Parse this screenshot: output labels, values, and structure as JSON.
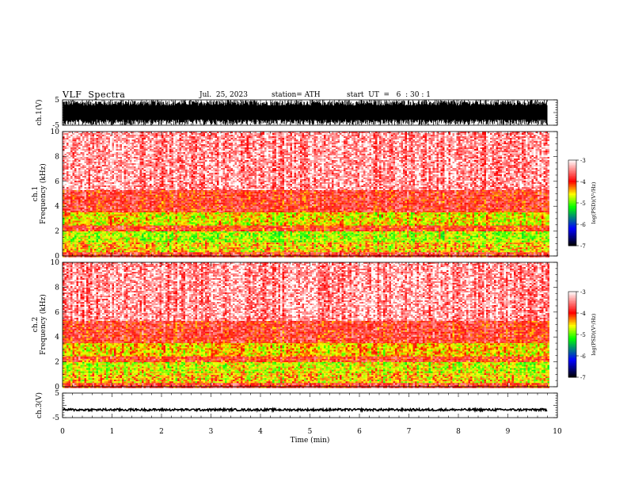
{
  "header": {
    "title": "VLF  Spectra",
    "date": "Jul.  25, 2023",
    "station": "station= ATH",
    "start": "start  UT  =   6  : 30 : 1"
  },
  "chart_data": [
    {
      "type": "line",
      "panel": "waveform-ch1",
      "ylabel": "ch.1(V)",
      "ylim": [
        -5,
        5
      ],
      "yticks": [
        "5",
        "-5"
      ],
      "xlim": [
        0,
        10
      ],
      "x_data_end": 9.8,
      "description_values": {
        "min": -5,
        "max": 5
      }
    },
    {
      "type": "heatmap",
      "panel": "spectrogram-ch1",
      "ylabel": "ch.1",
      "ylabel2": "Frequency  (kHz)",
      "ylim": [
        0,
        10
      ],
      "yticks": [
        "0",
        "2",
        "4",
        "6",
        "8",
        "10"
      ],
      "xlim": [
        0,
        10
      ],
      "x_data_end": 9.8,
      "band_levels": [
        {
          "from": 0,
          "to": 0.4,
          "level": -3.9
        },
        {
          "from": 0.4,
          "to": 1.2,
          "level": -4.5
        },
        {
          "from": 1.2,
          "to": 2.0,
          "level": -4.8
        },
        {
          "from": 2.0,
          "to": 2.5,
          "level": -4.0
        },
        {
          "from": 2.5,
          "to": 3.6,
          "level": -4.6
        },
        {
          "from": 3.6,
          "to": 5.3,
          "level": -3.9
        },
        {
          "from": 5.3,
          "to": 10,
          "level": -3.4
        }
      ],
      "colorbar": {
        "label": "log(PSD)(V²/Hz)",
        "range": [
          -7,
          -3
        ],
        "ticks": [
          "-3",
          "-4",
          "-5",
          "-6",
          "-7"
        ]
      }
    },
    {
      "type": "heatmap",
      "panel": "spectrogram-ch2",
      "ylabel": "ch.2",
      "ylabel2": "Frequency  (kHz)",
      "ylim": [
        0,
        10
      ],
      "yticks": [
        "0",
        "2",
        "4",
        "6",
        "8",
        "10"
      ],
      "xlim": [
        0,
        10
      ],
      "x_data_end": 9.8,
      "band_levels": [
        {
          "from": 0,
          "to": 0.4,
          "level": -3.9
        },
        {
          "from": 0.4,
          "to": 1.2,
          "level": -4.5
        },
        {
          "from": 1.2,
          "to": 2.0,
          "level": -4.7
        },
        {
          "from": 2.0,
          "to": 2.5,
          "level": -4.0
        },
        {
          "from": 2.5,
          "to": 3.6,
          "level": -4.5
        },
        {
          "from": 3.6,
          "to": 5.3,
          "level": -3.9
        },
        {
          "from": 5.3,
          "to": 10,
          "level": -3.4
        }
      ],
      "colorbar": {
        "label": "log(PSD)(V²/Hz)",
        "range": [
          -7,
          -3
        ],
        "ticks": [
          "-3",
          "-4",
          "-5",
          "-6",
          "-7"
        ]
      }
    },
    {
      "type": "line",
      "panel": "waveform-ch3",
      "ylabel": "ch.3(V)",
      "ylim": [
        -5,
        5
      ],
      "yticks": [
        "5",
        "-5"
      ],
      "xlim": [
        0,
        10
      ],
      "x_data_end": 9.8,
      "baseline": -1.8,
      "xlabel": "Time  (min)",
      "xticks": [
        "0",
        "1",
        "2",
        "3",
        "4",
        "5",
        "6",
        "7",
        "8",
        "9",
        "10"
      ]
    }
  ],
  "colors": {
    "axis": "#000000",
    "waveform": "#000000",
    "colormap": [
      "#000000",
      "#0000ff",
      "#00ff00",
      "#ffff00",
      "#ff0000",
      "#ffffff"
    ]
  }
}
